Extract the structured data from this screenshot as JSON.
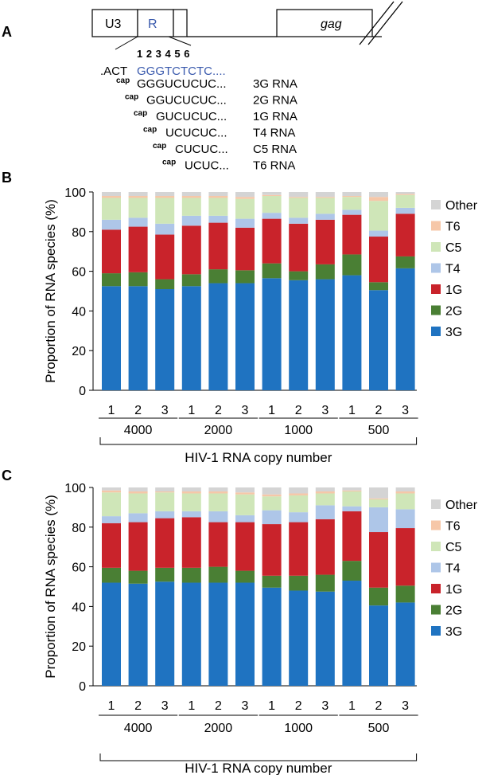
{
  "panel_a": {
    "label": "A",
    "boxes": {
      "u3": "U3",
      "r": "R",
      "gag": "gag"
    },
    "positions": "1 2 3 4 5 6",
    "prefix": ".ACT",
    "template_seq": "GGGTCTCTC....",
    "cap_label": "cap",
    "species": [
      {
        "seq": "GGGUCUCUC...",
        "name": "3G RNA"
      },
      {
        "seq": "GGUCUCUC...",
        "name": "2G RNA"
      },
      {
        "seq": "GUCUCUC...",
        "name": "1G RNA"
      },
      {
        "seq": "UCUCUC...",
        "name": "T4 RNA"
      },
      {
        "seq": "CUCUC...",
        "name": "C5 RNA"
      },
      {
        "seq": "UCUC...",
        "name": "T6 RNA"
      }
    ]
  },
  "colors": {
    "3G": "#1f73c1",
    "2G": "#4a7f34",
    "1G": "#c9232b",
    "T4": "#aec6e8",
    "C5": "#cfe6b8",
    "T6": "#f6c7a8",
    "Other": "#d4d4d4"
  },
  "chart_data": [
    {
      "panel": "B",
      "type": "bar",
      "stacked": true,
      "ylabel": "Proportion of RNA species (%)",
      "xlabel": "HIV-1 RNA copy number",
      "ylim": [
        0,
        100
      ],
      "yticks": [
        0,
        20,
        40,
        60,
        80,
        100
      ],
      "categories": [
        "1",
        "2",
        "3",
        "1",
        "2",
        "3",
        "1",
        "2",
        "3",
        "1",
        "2",
        "3"
      ],
      "groups": [
        "4000",
        "2000",
        "1000",
        "500"
      ],
      "series": [
        {
          "name": "3G",
          "values": [
            52.5,
            52.5,
            51,
            52.5,
            54,
            54,
            56.5,
            55.5,
            56,
            58,
            50.5,
            61.5
          ]
        },
        {
          "name": "2G",
          "values": [
            6.5,
            7,
            5,
            6,
            7,
            6.5,
            7.5,
            4.5,
            7.5,
            10.5,
            4,
            6
          ]
        },
        {
          "name": "1G",
          "values": [
            22,
            23,
            22.5,
            24.5,
            23.5,
            21.5,
            22.5,
            24,
            22.5,
            20,
            23,
            21.5
          ]
        },
        {
          "name": "T4",
          "values": [
            5,
            4.5,
            5.5,
            5,
            3.5,
            4.5,
            3,
            3,
            3,
            2.5,
            3,
            3
          ]
        },
        {
          "name": "C5",
          "values": [
            11,
            10,
            13,
            9,
            9,
            10,
            8.5,
            10,
            8,
            6.5,
            15,
            6.5
          ]
        },
        {
          "name": "T6",
          "values": [
            1,
            1,
            1,
            1,
            1,
            1,
            0.5,
            0.5,
            0.5,
            0.5,
            2,
            0.5
          ]
        },
        {
          "name": "Other",
          "values": [
            2,
            2,
            2,
            2,
            2,
            2.5,
            1.5,
            2.5,
            2.5,
            2,
            2.5,
            1
          ]
        }
      ],
      "legend": [
        "Other",
        "T6",
        "C5",
        "T4",
        "1G",
        "2G",
        "3G"
      ]
    },
    {
      "panel": "C",
      "type": "bar",
      "stacked": true,
      "ylabel": "Proportion of RNA species (%)",
      "xlabel": "HIV-1 RNA copy number",
      "ylim": [
        0,
        100
      ],
      "yticks": [
        0,
        20,
        40,
        60,
        80,
        100
      ],
      "categories": [
        "1",
        "2",
        "3",
        "1",
        "2",
        "3",
        "1",
        "2",
        "3",
        "1",
        "2",
        "3"
      ],
      "groups": [
        "4000",
        "2000",
        "1000",
        "500"
      ],
      "series": [
        {
          "name": "3G",
          "values": [
            52,
            51.5,
            52.5,
            52,
            52,
            52,
            49.5,
            48,
            47.5,
            53,
            40.5,
            42
          ]
        },
        {
          "name": "2G",
          "values": [
            7.5,
            6.5,
            7,
            7.5,
            8,
            6,
            6,
            7.5,
            8.5,
            10,
            9,
            8.5
          ]
        },
        {
          "name": "1G",
          "values": [
            22.5,
            24.5,
            25,
            25.5,
            22.5,
            24.5,
            26,
            27,
            28,
            25,
            28,
            29
          ]
        },
        {
          "name": "T4",
          "values": [
            3.5,
            4.5,
            3.5,
            3,
            5.5,
            3.5,
            7,
            5,
            7,
            2.5,
            12.5,
            9.5
          ]
        },
        {
          "name": "C5",
          "values": [
            12,
            10,
            9.5,
            9,
            9,
            10.5,
            7,
            8.5,
            6,
            7.5,
            4,
            8
          ]
        },
        {
          "name": "T6",
          "values": [
            1,
            1,
            0.5,
            1,
            1,
            1,
            1,
            1,
            1,
            0.5,
            0.5,
            1
          ]
        },
        {
          "name": "Other",
          "values": [
            1.5,
            2,
            2,
            2,
            2,
            2.5,
            3.5,
            3,
            2,
            1.5,
            5.5,
            2
          ]
        }
      ],
      "legend": [
        "Other",
        "T6",
        "C5",
        "T4",
        "1G",
        "2G",
        "3G"
      ]
    }
  ]
}
